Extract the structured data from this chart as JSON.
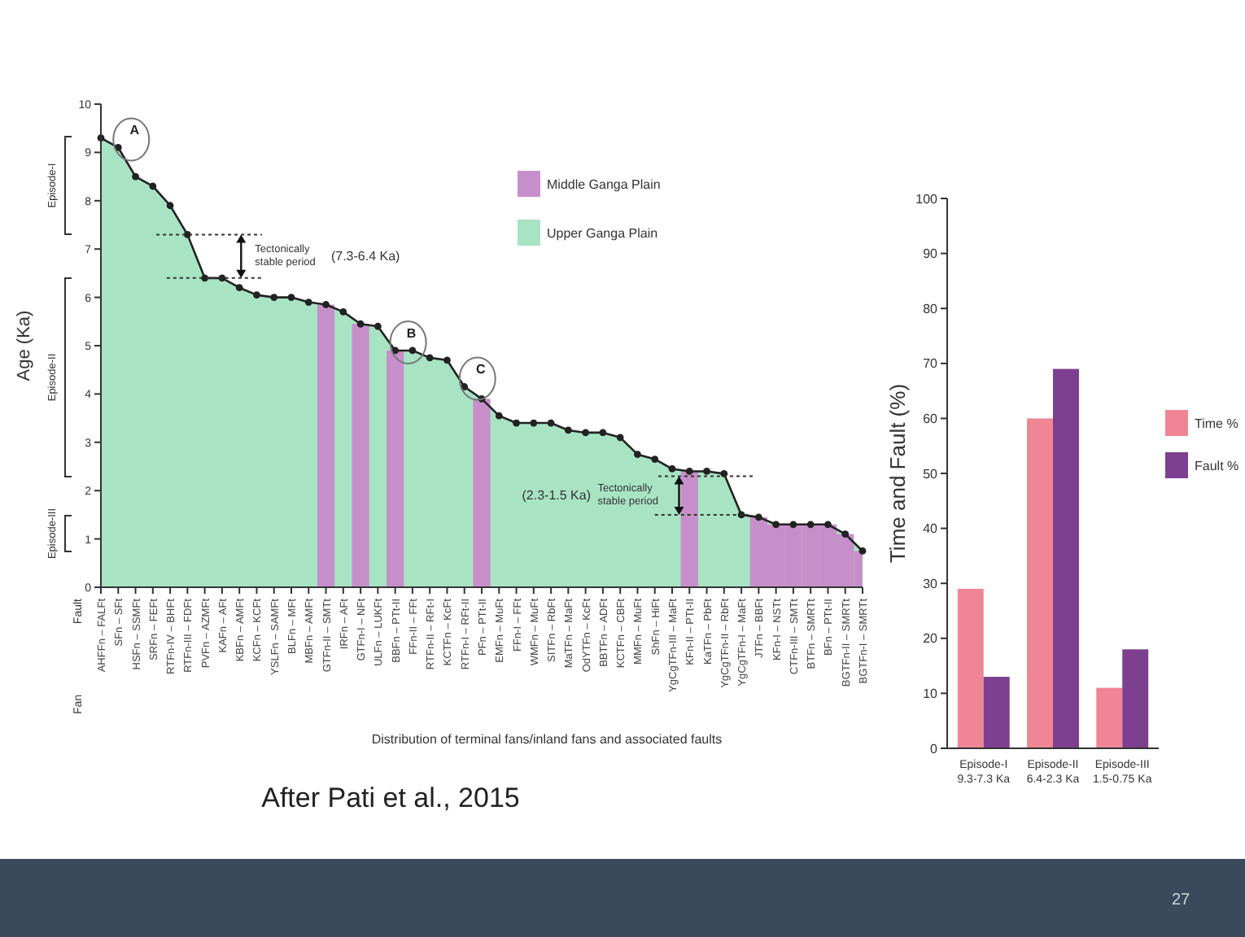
{
  "chart_data": [
    {
      "type": "area",
      "ylabel": "Age (Ka)",
      "xlabel": "Distribution of terminal fans/inland fans and associated faults",
      "ylim": [
        0,
        10
      ],
      "yticks": [
        0,
        1,
        2,
        3,
        4,
        5,
        6,
        7,
        8,
        9,
        10
      ],
      "legend": "top right",
      "categories": [
        "AHFFn – FALFt",
        "SFn – SFt",
        "HSFn – SSMFt",
        "SRFn – FEFt",
        "RTFn-IV – BHFt",
        "RTFn-III – FDFt",
        "PVFn – AZMFt",
        "KAFn – AFt",
        "KBFn – AMFt",
        "KCFn – KCFt",
        "YSLFn – SAMFt",
        "BLFn – MFt",
        "MBFn – AMFt",
        "GTFn-II – SMTt",
        "IRFn – AFt",
        "GTFn-I – NFt",
        "ULFn – LUKFt",
        "BBFn – PTt-II",
        "FFn-II – FFt",
        "RTFn-II – RFt-I",
        "KCTFn – KcFt",
        "RTFn-I – RFt-II",
        "PFn – PTt-II",
        "EMFn – MuFt",
        "FFn-I – FFt",
        "WMFn – MuFt",
        "SITFn – RbFt",
        "MaTFn – MaFt",
        "OdYTFn – KcFt",
        "BBTFn – ADFt",
        "KCTFn – CBFt",
        "MMFn – MuFt",
        "ShFn – HiFt",
        "YgCgTFn-III – MaFt",
        "KFn-II – PTt-II",
        "KaTFn – PbFt",
        "YgCgTFn-II – RbFt",
        "YgCgTFn-I – MaFt",
        "JTFn – BBFt",
        "KFn-I – NSTt",
        "CTFn-III – SMTt",
        "BTFn – SMRTt",
        "BFn – PTt-II",
        "BGTFn-II – SMRTt",
        "BGTFn-I – SMRTt"
      ],
      "series": [
        {
          "name": "Middle Ganga Plain",
          "type": "bar",
          "color": "#c78fca",
          "values": [
            null,
            null,
            null,
            null,
            null,
            null,
            null,
            null,
            null,
            null,
            null,
            null,
            null,
            5.85,
            null,
            5.45,
            null,
            4.9,
            null,
            null,
            null,
            null,
            3.9,
            null,
            null,
            null,
            null,
            null,
            null,
            null,
            null,
            null,
            null,
            null,
            2.4,
            null,
            null,
            null,
            1.45,
            1.3,
            1.3,
            1.3,
            1.3,
            1.1,
            0.75
          ]
        },
        {
          "name": "Upper Ganga Plain",
          "color": "#a8e4c4",
          "marker": "circle",
          "values": [
            9.3,
            9.1,
            8.5,
            8.3,
            7.9,
            7.3,
            6.4,
            6.4,
            6.2,
            6.05,
            6.0,
            6.0,
            5.9,
            5.85,
            5.7,
            5.45,
            5.4,
            4.9,
            4.9,
            4.75,
            4.7,
            4.15,
            3.9,
            3.55,
            3.4,
            3.4,
            3.4,
            3.25,
            3.2,
            3.2,
            3.1,
            2.75,
            2.65,
            2.45,
            2.4,
            2.4,
            2.35,
            1.5,
            1.45,
            1.3,
            1.3,
            1.3,
            1.3,
            1.1,
            0.75
          ]
        }
      ],
      "ref_lines": [
        {
          "axis": "y",
          "value": 7.3,
          "line_style": "dashed"
        },
        {
          "axis": "y",
          "value": 6.4,
          "line_style": "dashed"
        },
        {
          "axis": "y",
          "value": 2.3,
          "line_style": "dashed"
        },
        {
          "axis": "y",
          "value": 1.5,
          "line_style": "dashed"
        }
      ],
      "annotations": [
        {
          "text": "A",
          "x": "SFn – SFt",
          "y": 9.1
        },
        {
          "text": "B",
          "x": "BBFn – PTt-II",
          "y": 4.9
        },
        {
          "text": "C",
          "x": "RTFn-I – RFt-II",
          "y": 4.15
        },
        "Tectonically stable period",
        "(7.3-6.4 Ka)",
        "Tectonically stable period",
        "(2.3-1.5 Ka)",
        "Episode-I",
        "Episode-II",
        "Episode-III",
        "Fan",
        "Fault",
        "After Pati et al., 2015"
      ]
    },
    {
      "type": "bar",
      "ylabel": "Time and Fault (%)",
      "ylim": [
        0,
        100
      ],
      "yticks": [
        0,
        10,
        20,
        30,
        40,
        50,
        60,
        70,
        80,
        90,
        100
      ],
      "legend": "right",
      "categories": [
        "Episode-I\n9.3-7.3 Ka",
        "Episode-II\n6.4-2.3 Ka",
        "Episode-III\n1.5-0.75 Ka"
      ],
      "series": [
        {
          "name": "Time %",
          "color": "#f08595",
          "values": [
            29,
            60,
            11
          ]
        },
        {
          "name": "Fault %",
          "color": "#7d3f8f",
          "values": [
            13,
            69,
            18
          ]
        }
      ],
      "annotations": [
        "27"
      ]
    }
  ]
}
